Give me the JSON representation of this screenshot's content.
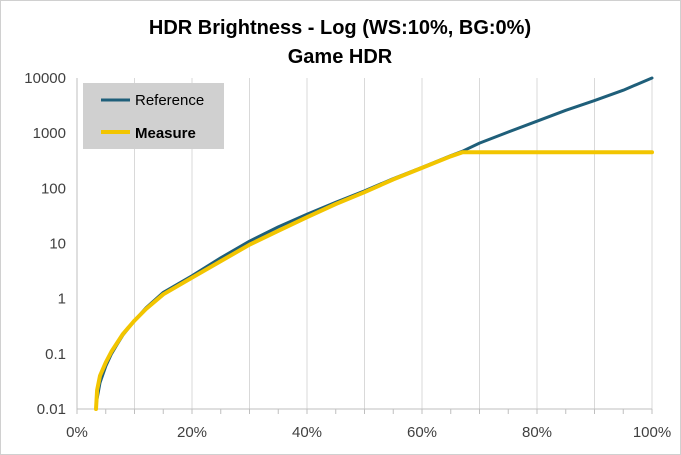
{
  "chart_data": {
    "type": "line",
    "title": "HDR Brightness - Log (WS:10%, BG:0%)",
    "subtitle": "Game HDR",
    "xlabel": "",
    "ylabel": "",
    "x_scale": "linear",
    "y_scale": "log",
    "xlim": [
      0,
      100
    ],
    "ylim": [
      0.01,
      10000
    ],
    "x_ticks": [
      "0%",
      "20%",
      "40%",
      "60%",
      "80%",
      "100%"
    ],
    "y_ticks": [
      "0.01",
      "0.1",
      "1",
      "10",
      "100",
      "1000",
      "10000"
    ],
    "grid": "vertical",
    "legend_position": "top-left",
    "colors": {
      "Reference": "#1f5f7a",
      "Measure": "#f2c500"
    },
    "series": [
      {
        "name": "Reference",
        "x": [
          3.3,
          4,
          5,
          6,
          7,
          8,
          10,
          12,
          15,
          20,
          25,
          30,
          35,
          40,
          45,
          50,
          55,
          60,
          65,
          67,
          70,
          75,
          80,
          85,
          90,
          95,
          100
        ],
        "y": [
          0.012,
          0.03,
          0.06,
          0.1,
          0.15,
          0.22,
          0.4,
          0.68,
          1.3,
          2.6,
          5.5,
          11,
          20,
          34,
          56,
          90,
          150,
          240,
          390,
          470,
          660,
          1050,
          1650,
          2600,
          3900,
          6000,
          10000
        ]
      },
      {
        "name": "Measure",
        "x": [
          3.3,
          3.5,
          4,
          5,
          6,
          7,
          8,
          10,
          12,
          15,
          20,
          25,
          30,
          35,
          40,
          45,
          50,
          55,
          60,
          65,
          67,
          70,
          75,
          80,
          85,
          90,
          95,
          100
        ],
        "y": [
          0.01,
          0.022,
          0.04,
          0.07,
          0.11,
          0.16,
          0.23,
          0.4,
          0.65,
          1.2,
          2.4,
          4.8,
          9.5,
          17,
          30,
          52,
          85,
          145,
          235,
          380,
          450,
          450,
          450,
          450,
          450,
          450,
          450,
          450
        ]
      }
    ]
  }
}
